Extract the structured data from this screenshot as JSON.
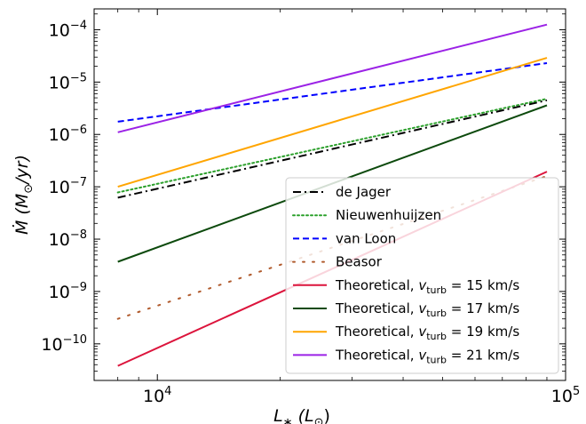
{
  "chart_data": {
    "type": "line",
    "xscale": "log",
    "yscale": "log",
    "xlim": [
      7000,
      100000
    ],
    "ylim": [
      2e-11,
      0.00025
    ],
    "xlabel": {
      "main": "L",
      "sub": "∗",
      "unit_open": " (L",
      "unit_sub": "⊙",
      "unit_close": ")"
    },
    "ylabel": {
      "main": "Ṁ",
      "unit_open": " (M",
      "unit_sub": "⊙",
      "unit_close": "/yr)"
    },
    "x_ticks": [
      {
        "value": 10000,
        "base": "10",
        "exp": "4"
      },
      {
        "value": 100000,
        "base": "10",
        "exp": "5"
      }
    ],
    "y_ticks": [
      {
        "value": 1e-10,
        "base": "10",
        "exp": "−10"
      },
      {
        "value": 1e-09,
        "base": "10",
        "exp": "−9"
      },
      {
        "value": 1e-08,
        "base": "10",
        "exp": "−8"
      },
      {
        "value": 1e-07,
        "base": "10",
        "exp": "−7"
      },
      {
        "value": 1e-06,
        "base": "10",
        "exp": "−6"
      },
      {
        "value": 1e-05,
        "base": "10",
        "exp": "−5"
      },
      {
        "value": 0.0001,
        "base": "10",
        "exp": "−4"
      }
    ],
    "legend_position": "lower-right",
    "series": [
      {
        "name": "de Jager",
        "color": "#000000",
        "dash": "dashdot",
        "x": [
          8000,
          90000
        ],
        "y": [
          6.2e-08,
          4.5e-06
        ]
      },
      {
        "name": "Nieuwenhuijzen",
        "color": "#2ca02c",
        "dash": "dotted",
        "x": [
          8000,
          90000
        ],
        "y": [
          7.8e-08,
          4.8e-06
        ]
      },
      {
        "name": "van Loon",
        "color": "#0000ff",
        "dash": "dashed",
        "x": [
          8000,
          90000
        ],
        "y": [
          1.75e-06,
          2.3e-05
        ]
      },
      {
        "name": "Beasor",
        "color": "#b05a2c",
        "dash": "loosedots",
        "x": [
          8000,
          90000
        ],
        "y": [
          3e-10,
          1.6e-07
        ]
      },
      {
        "name": "Theoretical, ",
        "sub_var": "v",
        "sub_text": "turb",
        "name_suffix": " = 15 km/s",
        "color": "#dc143c",
        "dash": "solid",
        "x": [
          8000,
          90000
        ],
        "y": [
          3.8e-11,
          1.95e-07
        ]
      },
      {
        "name": "Theoretical, ",
        "sub_var": "v",
        "sub_text": "turb",
        "name_suffix": " = 17 km/s",
        "color": "#0d4a0d",
        "dash": "solid",
        "x": [
          8000,
          90000
        ],
        "y": [
          3.7e-09,
          3.6e-06
        ]
      },
      {
        "name": "Theoretical, ",
        "sub_var": "v",
        "sub_text": "turb",
        "name_suffix": " = 19 km/s",
        "color": "#ffa500",
        "dash": "solid",
        "x": [
          8000,
          90000
        ],
        "y": [
          1e-07,
          2.9e-05
        ]
      },
      {
        "name": "Theoretical, ",
        "sub_var": "v",
        "sub_text": "turb",
        "name_suffix": " = 21 km/s",
        "color": "#9b22e6",
        "dash": "solid",
        "x": [
          8000,
          90000
        ],
        "y": [
          1.1e-06,
          0.000125
        ]
      }
    ]
  }
}
